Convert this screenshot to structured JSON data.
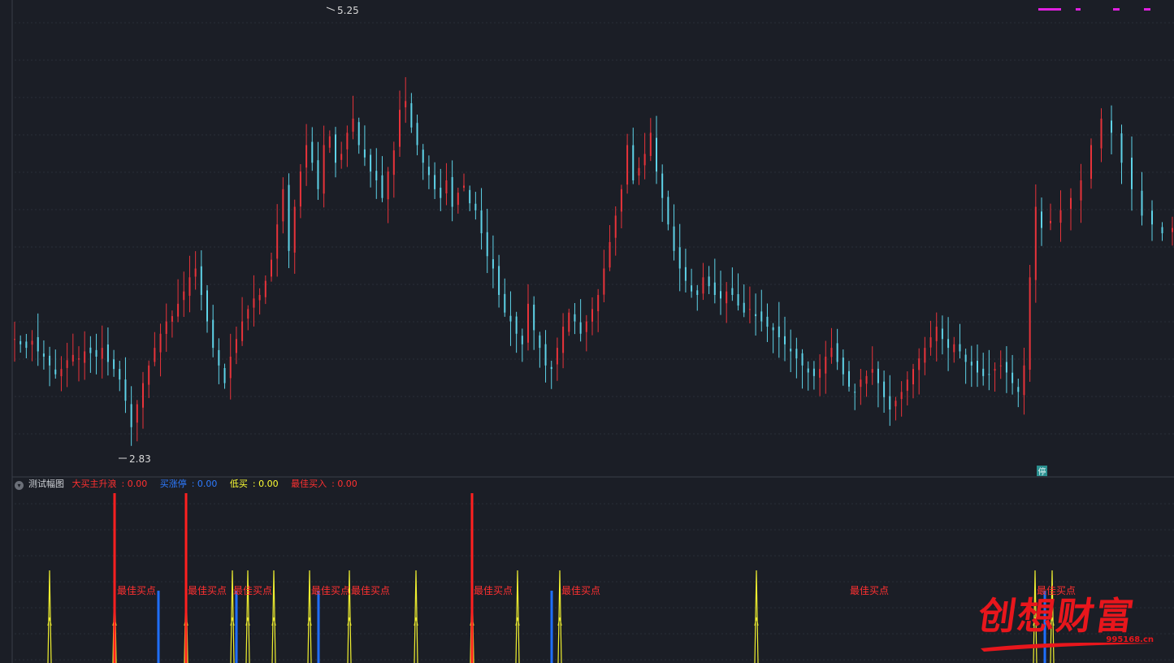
{
  "main_chart": {
    "high_label": "5.25",
    "low_label": "2.83",
    "halt_marker": "停",
    "colors": {
      "up": "#e8333a",
      "down": "#5ed3e8",
      "grid": "#2a2e38",
      "label": "#d8d8d8"
    }
  },
  "indicator": {
    "toggle_icon": "chevron-down-icon",
    "title": "测试幅图",
    "fields": [
      {
        "label": "大买主升浪",
        "value": "0.00",
        "color": "#ff3030"
      },
      {
        "label": "买涨停",
        "value": "0.00",
        "color": "#2e7bff"
      },
      {
        "label": "低买",
        "value": "0.00",
        "color": "#ffff33"
      },
      {
        "label": "最佳买入",
        "value": "0.00",
        "color": "#ff3030"
      }
    ],
    "signal_label": "最佳买点"
  },
  "watermark": {
    "text": "创想财富",
    "url": "995168.cn"
  },
  "chart_data": {
    "type": "candlestick",
    "title": "",
    "ylim": [
      2.7,
      5.35
    ],
    "price_high": 5.25,
    "price_low": 2.83,
    "closes": [
      3.45,
      3.42,
      3.4,
      3.44,
      3.38,
      3.35,
      3.3,
      3.25,
      3.28,
      3.33,
      3.36,
      3.34,
      3.38,
      3.37,
      3.35,
      3.4,
      3.32,
      3.28,
      3.22,
      3.1,
      2.95,
      3.08,
      3.2,
      3.3,
      3.4,
      3.48,
      3.55,
      3.58,
      3.65,
      3.72,
      3.8,
      3.85,
      3.7,
      3.55,
      3.4,
      3.3,
      3.2,
      3.35,
      3.45,
      3.55,
      3.62,
      3.68,
      3.7,
      3.78,
      3.9,
      4.1,
      4.3,
      3.95,
      4.2,
      4.4,
      4.55,
      4.45,
      4.3,
      4.55,
      4.6,
      4.45,
      4.5,
      4.62,
      4.7,
      4.55,
      4.48,
      4.4,
      4.35,
      4.25,
      4.4,
      4.52,
      4.75,
      4.8,
      4.65,
      4.55,
      4.45,
      4.38,
      4.3,
      4.25,
      4.35,
      4.2,
      4.28,
      4.32,
      4.22,
      4.18,
      4.05,
      3.92,
      3.85,
      3.7,
      3.6,
      3.55,
      3.48,
      3.42,
      3.65,
      3.5,
      3.4,
      3.3,
      3.28,
      3.4,
      3.52,
      3.6,
      3.55,
      3.48,
      3.55,
      3.62,
      3.7,
      3.85,
      4.0,
      4.15,
      4.3,
      4.55,
      4.35,
      4.42,
      4.5,
      4.62,
      4.4,
      4.25,
      4.1,
      3.95,
      3.85,
      3.78,
      3.72,
      3.7,
      3.8,
      3.75,
      3.7,
      3.68,
      3.72,
      3.7,
      3.64,
      3.6,
      3.62,
      3.58,
      3.55,
      3.52,
      3.5,
      3.46,
      3.42,
      3.38,
      3.34,
      3.3,
      3.26,
      3.24,
      3.28,
      3.35,
      3.4,
      3.32,
      3.25,
      3.18,
      3.15,
      3.22,
      3.24,
      3.28,
      3.2,
      3.12,
      3.05,
      3.1,
      3.15,
      3.22,
      3.28,
      3.34,
      3.4,
      3.46,
      3.52,
      3.45,
      3.4,
      3.42,
      3.38,
      3.32,
      3.3,
      3.26,
      3.24,
      3.25,
      3.28,
      3.3,
      3.26,
      3.2,
      3.15,
      3.3,
      3.8,
      4.2,
      4.08,
      4.12,
      4.18,
      4.25,
      4.35,
      4.55,
      4.7,
      4.62,
      4.45,
      4.3,
      4.15,
      4.1,
      4.05,
      4.08
    ],
    "annotations": [
      "5.25",
      "2.83",
      "停"
    ],
    "indicator_series": [
      {
        "name": "大买主升浪",
        "value": 0.0
      },
      {
        "name": "买涨停",
        "value": 0.0
      },
      {
        "name": "低买",
        "value": 0.0
      },
      {
        "name": "最佳买入",
        "value": 0.0
      }
    ],
    "signals": {
      "main_wave_x": [
        141,
        229,
        581
      ],
      "limit_up_x": [
        195,
        291,
        392,
        679,
        1286
      ],
      "low_buy_x": [
        61,
        141,
        229,
        286,
        305,
        337,
        381,
        430,
        512,
        581,
        637,
        689,
        931,
        1274,
        1295
      ],
      "best_buy_x": [
        168,
        255,
        311,
        407,
        456,
        607,
        715,
        1070,
        1300
      ]
    }
  }
}
